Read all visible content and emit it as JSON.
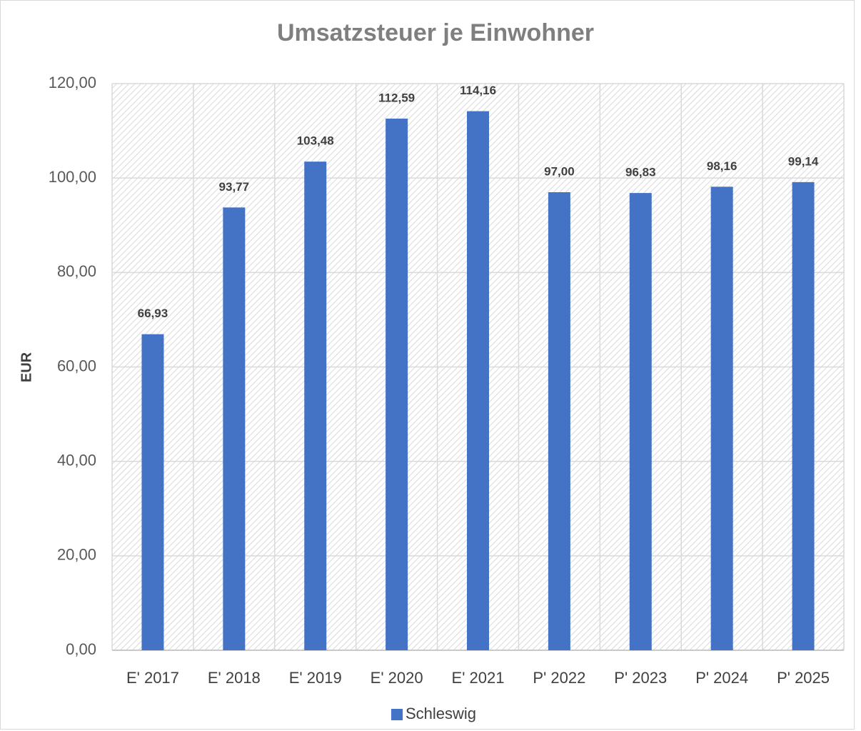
{
  "chart_data": {
    "type": "bar",
    "title": "Umsatzsteuer je Einwohner",
    "y_label": "EUR",
    "categories": [
      "E' 2017",
      "E' 2018",
      "E' 2019",
      "E' 2020",
      "E' 2021",
      "P' 2022",
      "P' 2023",
      "P' 2024",
      "P' 2025"
    ],
    "series": [
      {
        "name": "Schleswig",
        "color": "#4472c4",
        "values": [
          66.93,
          93.77,
          103.48,
          112.59,
          114.16,
          97.0,
          96.83,
          98.16,
          99.14
        ],
        "value_labels": [
          "66,93",
          "93,77",
          "103,48",
          "112,59",
          "114,16",
          "97,00",
          "96,83",
          "98,16",
          "99,14"
        ]
      }
    ],
    "ylim": [
      0,
      120
    ],
    "yticks": [
      {
        "value": 0,
        "label": "0,00"
      },
      {
        "value": 20,
        "label": "20,00"
      },
      {
        "value": 40,
        "label": "40,00"
      },
      {
        "value": 60,
        "label": "60,00"
      },
      {
        "value": 80,
        "label": "80,00"
      },
      {
        "value": 100,
        "label": "100,00"
      },
      {
        "value": 120,
        "label": "120,00"
      }
    ],
    "grid": true,
    "legend": "bottom"
  }
}
